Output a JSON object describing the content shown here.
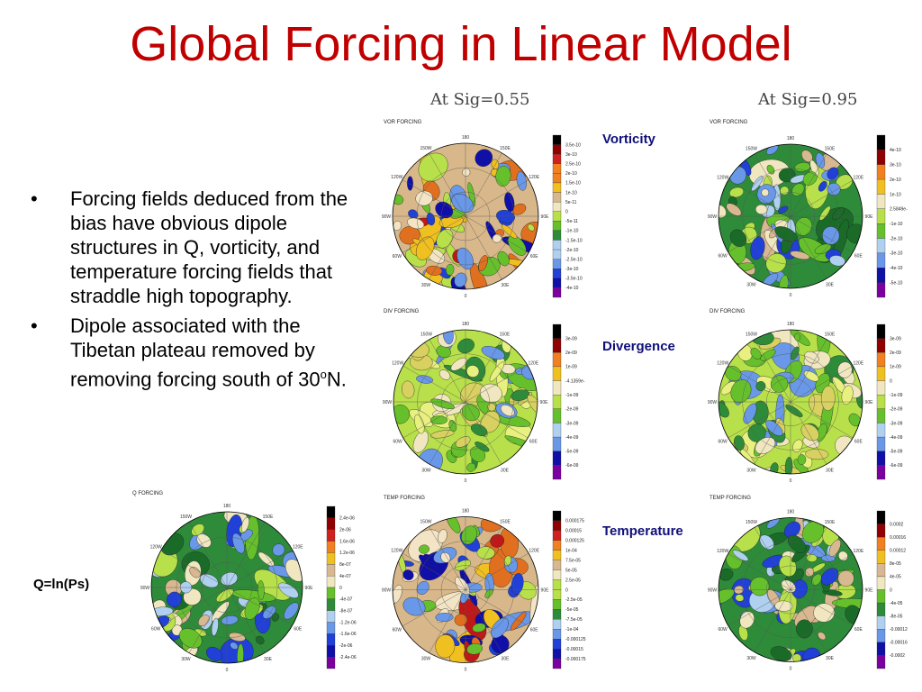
{
  "title": "Global Forcing in Linear Model",
  "sig_labels": [
    "At  Sig=0.55",
    "At  Sig=0.95"
  ],
  "bullets": [
    {
      "text": "Forcing fields deduced from the bias have obvious dipole structures in Q, vorticity, and temperature forcing fields that straddle high topography."
    },
    {
      "text_before": "Dipole associated with the Tibetan plateau removed by removing forcing south of 30",
      "sup": "o",
      "text_after": "N."
    }
  ],
  "row_labels": {
    "vorticity": "Vorticity",
    "divergence": "Divergence",
    "temperature": "Temperature"
  },
  "q_label": "Q=ln(Ps)",
  "panels": [
    {
      "id": "vor-055",
      "title": "VOR FORCING",
      "palette": "div",
      "theme": "tan",
      "legend": [
        "3.5e-10",
        "3e-10",
        "2.5e-10",
        "2e-10",
        "1.5e-10",
        "1e-10",
        "5e-11",
        "0",
        "-5e-11",
        "-1e-10",
        "-1.5e-10",
        "-2e-10",
        "-2.5e-10",
        "-3e-10",
        "-3.5e-10",
        "-4e-10"
      ],
      "lon": [
        "180",
        "150W",
        "150E",
        "120W",
        "120E",
        "90W",
        "90E",
        "60W",
        "60E",
        "30W",
        "30E",
        "0"
      ]
    },
    {
      "id": "vor-095",
      "title": "VOR FORCING",
      "palette": "div",
      "theme": "green",
      "legend": [
        "4e-10",
        "3e-10",
        "2e-10",
        "1e-10",
        "2.5849e-",
        "-1e-10",
        "-2e-10",
        "-3e-10",
        "-4e-10",
        "-5e-10"
      ],
      "lon": [
        "180",
        "150W",
        "150E",
        "120W",
        "120E",
        "90W",
        "90E",
        "60W",
        "60E",
        "30W",
        "30E",
        "0"
      ]
    },
    {
      "id": "div-055",
      "title": "DIV FORCING",
      "palette": "div",
      "theme": "lightgreen",
      "legend": [
        "3e-09",
        "2e-09",
        "1e-09",
        "-4.1359e-",
        "-1e-09",
        "-2e-09",
        "-3e-09",
        "-4e-09",
        "-5e-09",
        "-6e-09"
      ],
      "lon": [
        "180",
        "150W",
        "150E",
        "120W",
        "120E",
        "90W",
        "90E",
        "60W",
        "60E",
        "30W",
        "30E",
        "0"
      ]
    },
    {
      "id": "div-095",
      "title": "DIV FORCING",
      "palette": "div",
      "theme": "lightgreen",
      "legend": [
        "3e-09",
        "2e-09",
        "1e-09",
        "0",
        "-1e-09",
        "-2e-09",
        "-3e-09",
        "-4e-09",
        "-5e-09",
        "-6e-09"
      ],
      "lon": [
        "180",
        "150W",
        "150E",
        "120W",
        "120E",
        "90W",
        "90E",
        "60W",
        "60E",
        "30W",
        "30E",
        "0"
      ]
    },
    {
      "id": "q",
      "title": "Q FORCING",
      "palette": "div",
      "theme": "green",
      "legend": [
        "2.4e-06",
        "2e-06",
        "1.6e-06",
        "1.2e-06",
        "8e-07",
        "4e-07",
        "0",
        "-4e-07",
        "-8e-07",
        "-1.2e-06",
        "-1.6e-06",
        "-2e-06",
        "-2.4e-06"
      ],
      "lon": [
        "180",
        "150W",
        "150E",
        "120W",
        "120E",
        "90W",
        "90E",
        "60W",
        "60E",
        "30W",
        "30E",
        "0"
      ]
    },
    {
      "id": "temp-055",
      "title": "TEMP FORCING",
      "palette": "div",
      "theme": "tan",
      "legend": [
        "0.000175",
        "0.00015",
        "0.000125",
        "1e-04",
        "7.5e-05",
        "5e-05",
        "2.5e-05",
        "0",
        "-2.5e-05",
        "-5e-05",
        "-7.5e-05",
        "-1e-04",
        "-0.000125",
        "-0.00015",
        "-0.000175"
      ],
      "lon": [
        "180",
        "150W",
        "150E",
        "120W",
        "120E",
        "90W",
        "90E",
        "60W",
        "60E",
        "30W",
        "30E",
        "0"
      ]
    },
    {
      "id": "temp-095",
      "title": "TEMP FORCING",
      "palette": "div",
      "theme": "green",
      "legend": [
        "0.0002",
        "0.00016",
        "0.00012",
        "8e-05",
        "4e-05",
        "0",
        "-4e-05",
        "-8e-05",
        "-0.00012",
        "-0.00016",
        "-0.0002"
      ],
      "lon": [
        "180",
        "150W",
        "150E",
        "120W",
        "120E",
        "90W",
        "90E",
        "60W",
        "60E",
        "30W",
        "30E",
        "0"
      ]
    }
  ]
}
